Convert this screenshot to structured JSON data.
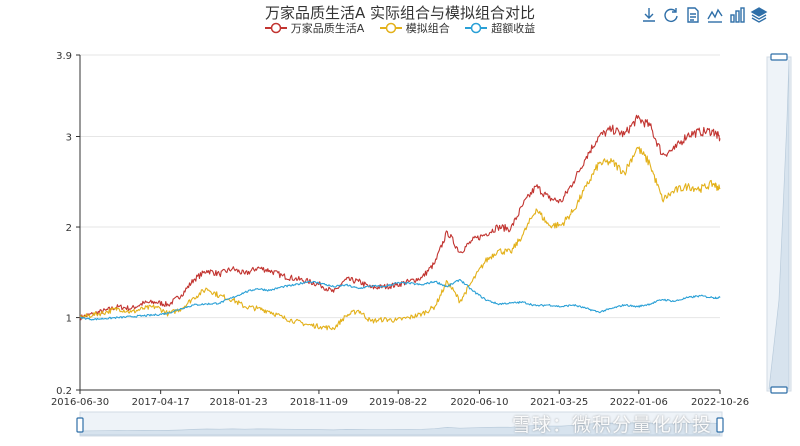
{
  "title": "万家品质生活A 实际组合与模拟组合对比",
  "toolbox": {
    "icons": [
      "download-icon",
      "refresh-icon",
      "data-view-icon",
      "line-switch-icon",
      "bar-switch-icon",
      "stack-icon"
    ],
    "color": "#2f6fa8"
  },
  "watermark": "雪球：微积分量化价投",
  "chart_data": {
    "type": "line",
    "title": "万家品质生活A 实际组合与模拟组合对比",
    "xlabel": "",
    "ylabel": "",
    "x_ticks": [
      "2016-06-30",
      "2017-04-17",
      "2018-01-23",
      "2018-11-09",
      "2019-08-22",
      "2020-06-10",
      "2021-03-25",
      "2022-01-06",
      "2022-10-26"
    ],
    "x_range": [
      "2016-06-30",
      "2022-10-26"
    ],
    "y_ticks": [
      "0.2",
      "1",
      "2",
      "3",
      "3.9"
    ],
    "ylim": [
      0.2,
      3.9
    ],
    "grid": "horizontal",
    "legend_position": "top",
    "dataZoom": "slider-bottom-and-right",
    "series": [
      {
        "name": "万家品质生活A",
        "color": "#c23531",
        "points": [
          [
            "2016-06-30",
            1.0
          ],
          [
            "2016-08-15",
            1.04
          ],
          [
            "2016-10-01",
            1.08
          ],
          [
            "2016-11-15",
            1.12
          ],
          [
            "2017-01-01",
            1.1
          ],
          [
            "2017-02-15",
            1.16
          ],
          [
            "2017-04-01",
            1.17
          ],
          [
            "2017-05-15",
            1.14
          ],
          [
            "2017-07-01",
            1.25
          ],
          [
            "2017-08-15",
            1.42
          ],
          [
            "2017-10-01",
            1.52
          ],
          [
            "2017-11-15",
            1.48
          ],
          [
            "2018-01-01",
            1.54
          ],
          [
            "2018-02-15",
            1.48
          ],
          [
            "2018-04-01",
            1.55
          ],
          [
            "2018-05-15",
            1.52
          ],
          [
            "2018-07-01",
            1.46
          ],
          [
            "2018-08-15",
            1.43
          ],
          [
            "2018-10-01",
            1.4
          ],
          [
            "2018-11-15",
            1.36
          ],
          [
            "2019-01-01",
            1.28
          ],
          [
            "2019-02-15",
            1.42
          ],
          [
            "2019-04-01",
            1.4
          ],
          [
            "2019-05-15",
            1.33
          ],
          [
            "2019-07-01",
            1.34
          ],
          [
            "2019-08-15",
            1.36
          ],
          [
            "2019-10-01",
            1.4
          ],
          [
            "2019-11-15",
            1.44
          ],
          [
            "2020-01-01",
            1.6
          ],
          [
            "2020-02-15",
            1.95
          ],
          [
            "2020-04-01",
            1.72
          ],
          [
            "2020-05-15",
            1.85
          ],
          [
            "2020-07-01",
            1.92
          ],
          [
            "2020-08-15",
            2.0
          ],
          [
            "2020-10-01",
            1.98
          ],
          [
            "2020-11-15",
            2.25
          ],
          [
            "2021-01-01",
            2.45
          ],
          [
            "2021-02-15",
            2.32
          ],
          [
            "2021-04-01",
            2.28
          ],
          [
            "2021-05-15",
            2.5
          ],
          [
            "2021-07-01",
            2.78
          ],
          [
            "2021-08-15",
            3.0
          ],
          [
            "2021-10-01",
            3.08
          ],
          [
            "2021-11-15",
            3.02
          ],
          [
            "2022-01-01",
            3.2
          ],
          [
            "2022-02-15",
            3.12
          ],
          [
            "2022-04-01",
            2.8
          ],
          [
            "2022-05-15",
            2.86
          ],
          [
            "2022-07-01",
            3.02
          ],
          [
            "2022-08-15",
            3.05
          ],
          [
            "2022-10-01",
            3.06
          ],
          [
            "2022-10-26",
            2.98
          ]
        ]
      },
      {
        "name": "模拟组合",
        "color": "#e3b11b",
        "points": [
          [
            "2016-06-30",
            1.0
          ],
          [
            "2016-08-15",
            1.03
          ],
          [
            "2016-10-01",
            1.06
          ],
          [
            "2016-11-15",
            1.1
          ],
          [
            "2017-01-01",
            1.06
          ],
          [
            "2017-02-15",
            1.1
          ],
          [
            "2017-04-01",
            1.12
          ],
          [
            "2017-05-15",
            1.04
          ],
          [
            "2017-07-01",
            1.1
          ],
          [
            "2017-08-15",
            1.22
          ],
          [
            "2017-10-01",
            1.32
          ],
          [
            "2017-11-15",
            1.24
          ],
          [
            "2018-01-01",
            1.2
          ],
          [
            "2018-02-15",
            1.12
          ],
          [
            "2018-04-01",
            1.1
          ],
          [
            "2018-05-15",
            1.07
          ],
          [
            "2018-07-01",
            1.0
          ],
          [
            "2018-08-15",
            0.96
          ],
          [
            "2018-10-01",
            0.92
          ],
          [
            "2018-11-15",
            0.9
          ],
          [
            "2019-01-01",
            0.88
          ],
          [
            "2019-02-15",
            1.02
          ],
          [
            "2019-04-01",
            1.08
          ],
          [
            "2019-05-15",
            0.96
          ],
          [
            "2019-07-01",
            0.98
          ],
          [
            "2019-08-15",
            0.97
          ],
          [
            "2019-10-01",
            1.0
          ],
          [
            "2019-11-15",
            1.04
          ],
          [
            "2020-01-01",
            1.12
          ],
          [
            "2020-02-15",
            1.4
          ],
          [
            "2020-04-01",
            1.18
          ],
          [
            "2020-05-15",
            1.4
          ],
          [
            "2020-07-01",
            1.62
          ],
          [
            "2020-08-15",
            1.74
          ],
          [
            "2020-10-01",
            1.72
          ],
          [
            "2020-11-15",
            1.92
          ],
          [
            "2021-01-01",
            2.2
          ],
          [
            "2021-02-15",
            2.02
          ],
          [
            "2021-04-01",
            2.02
          ],
          [
            "2021-05-15",
            2.18
          ],
          [
            "2021-07-01",
            2.45
          ],
          [
            "2021-08-15",
            2.7
          ],
          [
            "2021-10-01",
            2.72
          ],
          [
            "2021-11-15",
            2.6
          ],
          [
            "2022-01-01",
            2.88
          ],
          [
            "2022-02-15",
            2.7
          ],
          [
            "2022-04-01",
            2.3
          ],
          [
            "2022-05-15",
            2.4
          ],
          [
            "2022-07-01",
            2.45
          ],
          [
            "2022-08-15",
            2.42
          ],
          [
            "2022-10-01",
            2.48
          ],
          [
            "2022-10-26",
            2.42
          ]
        ]
      },
      {
        "name": "超额收益",
        "color": "#2aa0d6",
        "points": [
          [
            "2016-06-30",
            1.0
          ],
          [
            "2016-08-15",
            0.98
          ],
          [
            "2016-10-01",
            0.99
          ],
          [
            "2016-11-15",
            1.0
          ],
          [
            "2017-01-01",
            1.01
          ],
          [
            "2017-02-15",
            1.02
          ],
          [
            "2017-04-01",
            1.03
          ],
          [
            "2017-05-15",
            1.05
          ],
          [
            "2017-07-01",
            1.1
          ],
          [
            "2017-08-15",
            1.14
          ],
          [
            "2017-10-01",
            1.15
          ],
          [
            "2017-11-15",
            1.16
          ],
          [
            "2018-01-01",
            1.22
          ],
          [
            "2018-02-15",
            1.28
          ],
          [
            "2018-04-01",
            1.32
          ],
          [
            "2018-05-15",
            1.3
          ],
          [
            "2018-07-01",
            1.34
          ],
          [
            "2018-08-15",
            1.36
          ],
          [
            "2018-10-01",
            1.4
          ],
          [
            "2018-11-15",
            1.38
          ],
          [
            "2019-01-01",
            1.34
          ],
          [
            "2019-02-15",
            1.36
          ],
          [
            "2019-04-01",
            1.32
          ],
          [
            "2019-05-15",
            1.35
          ],
          [
            "2019-07-01",
            1.34
          ],
          [
            "2019-08-15",
            1.38
          ],
          [
            "2019-10-01",
            1.38
          ],
          [
            "2019-11-15",
            1.36
          ],
          [
            "2020-01-01",
            1.4
          ],
          [
            "2020-02-15",
            1.34
          ],
          [
            "2020-04-01",
            1.42
          ],
          [
            "2020-05-15",
            1.3
          ],
          [
            "2020-07-01",
            1.2
          ],
          [
            "2020-08-15",
            1.15
          ],
          [
            "2020-10-01",
            1.16
          ],
          [
            "2020-11-15",
            1.17
          ],
          [
            "2021-01-01",
            1.13
          ],
          [
            "2021-02-15",
            1.14
          ],
          [
            "2021-04-01",
            1.12
          ],
          [
            "2021-05-15",
            1.14
          ],
          [
            "2021-07-01",
            1.1
          ],
          [
            "2021-08-15",
            1.06
          ],
          [
            "2021-10-01",
            1.1
          ],
          [
            "2021-11-15",
            1.14
          ],
          [
            "2022-01-01",
            1.12
          ],
          [
            "2022-02-15",
            1.15
          ],
          [
            "2022-04-01",
            1.2
          ],
          [
            "2022-05-15",
            1.18
          ],
          [
            "2022-07-01",
            1.22
          ],
          [
            "2022-08-15",
            1.24
          ],
          [
            "2022-10-01",
            1.22
          ],
          [
            "2022-10-26",
            1.22
          ]
        ]
      }
    ]
  }
}
